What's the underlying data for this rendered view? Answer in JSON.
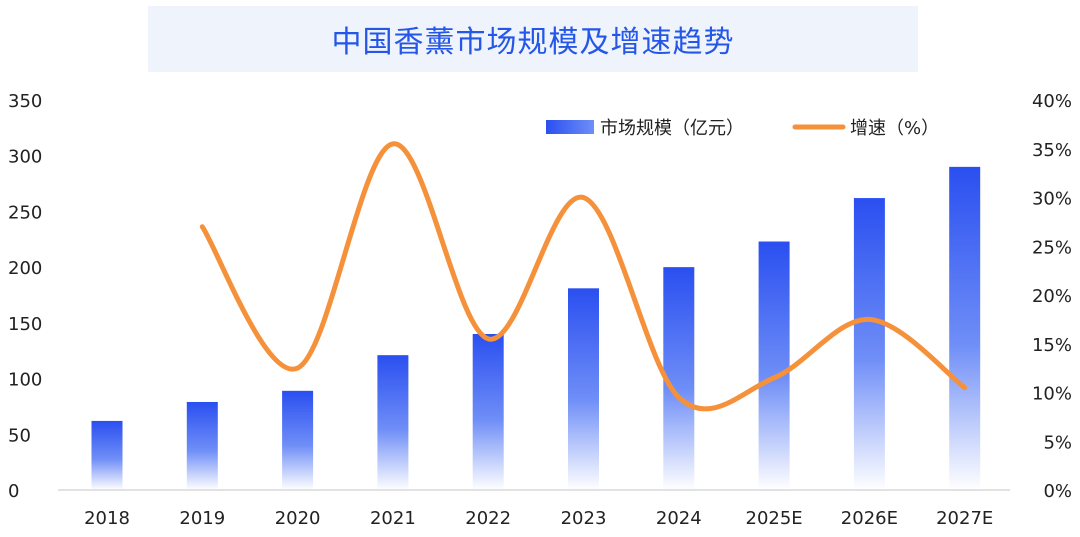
{
  "chart_data": {
    "type": "bar",
    "title": "中国香薰市场规模及增速趋势",
    "categories": [
      "2018",
      "2019",
      "2020",
      "2021",
      "2022",
      "2023",
      "2024",
      "2025E",
      "2026E",
      "2027E"
    ],
    "series": [
      {
        "name": "市场规模（亿元）",
        "type": "bar",
        "axis": "left",
        "values": [
          62,
          79,
          89,
          121,
          140,
          181,
          200,
          223,
          262,
          290
        ]
      },
      {
        "name": "增速（%）",
        "type": "line",
        "axis": "right",
        "values": [
          null,
          27,
          12.5,
          35.5,
          15.5,
          30,
          9.5,
          11.5,
          17.5,
          10.5
        ]
      }
    ],
    "y_left": {
      "ylim": [
        0,
        350
      ],
      "ticks": [
        "0",
        "50",
        "100",
        "150",
        "200",
        "250",
        "300",
        "350"
      ]
    },
    "y_right": {
      "ylim": [
        0,
        40
      ],
      "ticks": [
        "0%",
        "5%",
        "10%",
        "15%",
        "20%",
        "25%",
        "30%",
        "35%",
        "40%"
      ]
    },
    "legend_position": "top-right",
    "grid": false,
    "colors": {
      "bar_top": "#2a4ff0",
      "bar_bottom": "#ffffff",
      "line": "#f5913a",
      "title": "#2456e8",
      "banner": "#eef3fc"
    }
  }
}
